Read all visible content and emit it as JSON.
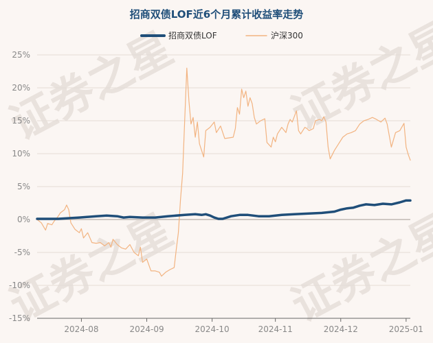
{
  "chart_data": {
    "type": "line",
    "title": "招商双债LOF近6个月累计收益率走势",
    "xlabel": "",
    "ylabel": "",
    "ylim": [
      -15,
      25
    ],
    "yticks": [
      "25%",
      "20%",
      "15%",
      "10%",
      "5%",
      "0%",
      "-5%",
      "-10%",
      "-15%"
    ],
    "ytick_values": [
      25,
      20,
      15,
      10,
      5,
      0,
      -5,
      -10,
      -15
    ],
    "xticks": [
      {
        "label": "2024-08",
        "t": 21
      },
      {
        "label": "2024-09",
        "t": 52
      },
      {
        "label": "2024-10",
        "t": 83
      },
      {
        "label": "2024-11",
        "t": 113
      },
      {
        "label": "2024-12",
        "t": 144
      },
      {
        "label": "2025-01",
        "t": 175
      }
    ],
    "x_range": [
      0,
      177
    ],
    "grid": true,
    "legend_position": "top",
    "series": [
      {
        "name": "招商双债LOF",
        "color": "#1f4e79",
        "width": 3.5,
        "points": [
          [
            0,
            0.1
          ],
          [
            10,
            0.1
          ],
          [
            20,
            0.3
          ],
          [
            28,
            0.5
          ],
          [
            33,
            0.6
          ],
          [
            38,
            0.5
          ],
          [
            41,
            0.3
          ],
          [
            44,
            0.4
          ],
          [
            50,
            0.3
          ],
          [
            56,
            0.3
          ],
          [
            62,
            0.5
          ],
          [
            70,
            0.7
          ],
          [
            75,
            0.8
          ],
          [
            78,
            0.7
          ],
          [
            80,
            0.8
          ],
          [
            82,
            0.6
          ],
          [
            84,
            0.3
          ],
          [
            86,
            0.1
          ],
          [
            88,
            0.1
          ],
          [
            92,
            0.5
          ],
          [
            96,
            0.7
          ],
          [
            100,
            0.7
          ],
          [
            105,
            0.5
          ],
          [
            110,
            0.5
          ],
          [
            116,
            0.7
          ],
          [
            122,
            0.8
          ],
          [
            128,
            0.9
          ],
          [
            135,
            1.0
          ],
          [
            141,
            1.2
          ],
          [
            144,
            1.5
          ],
          [
            147,
            1.7
          ],
          [
            150,
            1.8
          ],
          [
            153,
            2.1
          ],
          [
            156,
            2.3
          ],
          [
            160,
            2.2
          ],
          [
            164,
            2.4
          ],
          [
            168,
            2.3
          ],
          [
            172,
            2.6
          ],
          [
            175,
            2.9
          ],
          [
            177,
            2.9
          ]
        ]
      },
      {
        "name": "沪深300",
        "color": "#f2b380",
        "width": 1.2,
        "points": [
          [
            0,
            0.0
          ],
          [
            2,
            -0.5
          ],
          [
            4,
            -1.6
          ],
          [
            5,
            -0.6
          ],
          [
            7,
            -0.8
          ],
          [
            8,
            -0.3
          ],
          [
            10,
            0.5
          ],
          [
            11,
            1.0
          ],
          [
            13,
            1.5
          ],
          [
            14,
            2.2
          ],
          [
            15,
            1.5
          ],
          [
            16,
            -0.5
          ],
          [
            18,
            -1.5
          ],
          [
            20,
            -2.0
          ],
          [
            21,
            -1.4
          ],
          [
            22,
            -2.8
          ],
          [
            24,
            -2.0
          ],
          [
            26,
            -3.5
          ],
          [
            28,
            -3.6
          ],
          [
            30,
            -3.5
          ],
          [
            32,
            -4.0
          ],
          [
            34,
            -3.5
          ],
          [
            35,
            -4.2
          ],
          [
            36,
            -3.0
          ],
          [
            38,
            -3.8
          ],
          [
            40,
            -4.3
          ],
          [
            42,
            -4.5
          ],
          [
            44,
            -3.8
          ],
          [
            46,
            -5.0
          ],
          [
            48,
            -5.5
          ],
          [
            49,
            -4.2
          ],
          [
            50,
            -6.5
          ],
          [
            52,
            -6.0
          ],
          [
            54,
            -7.8
          ],
          [
            56,
            -7.8
          ],
          [
            58,
            -8.0
          ],
          [
            59,
            -8.6
          ],
          [
            61,
            -8.0
          ],
          [
            63,
            -7.6
          ],
          [
            65,
            -7.3
          ],
          [
            66,
            -4.5
          ],
          [
            67,
            -2.0
          ],
          [
            68,
            3.0
          ],
          [
            69,
            7.0
          ],
          [
            70,
            15.0
          ],
          [
            71,
            23.0
          ],
          [
            72,
            18.0
          ],
          [
            73,
            14.5
          ],
          [
            74,
            15.5
          ],
          [
            75,
            12.5
          ],
          [
            76,
            14.8
          ],
          [
            77,
            11.5
          ],
          [
            79,
            9.5
          ],
          [
            80,
            13.5
          ],
          [
            82,
            14.0
          ],
          [
            84,
            14.8
          ],
          [
            85,
            13.2
          ],
          [
            87,
            14.2
          ],
          [
            89,
            12.3
          ],
          [
            91,
            12.4
          ],
          [
            93,
            12.5
          ],
          [
            94,
            13.8
          ],
          [
            95,
            17.0
          ],
          [
            96,
            16.0
          ],
          [
            97,
            19.8
          ],
          [
            98,
            18.5
          ],
          [
            99,
            19.5
          ],
          [
            100,
            17.2
          ],
          [
            101,
            18.5
          ],
          [
            102,
            17.6
          ],
          [
            103,
            15.5
          ],
          [
            104,
            14.5
          ],
          [
            106,
            15.0
          ],
          [
            108,
            15.3
          ],
          [
            109,
            11.7
          ],
          [
            111,
            11.0
          ],
          [
            112,
            12.5
          ],
          [
            113,
            11.8
          ],
          [
            114,
            13.0
          ],
          [
            116,
            14.0
          ],
          [
            118,
            13.2
          ],
          [
            119,
            14.5
          ],
          [
            120,
            15.2
          ],
          [
            121,
            14.8
          ],
          [
            123,
            16.5
          ],
          [
            124,
            13.5
          ],
          [
            125,
            13.0
          ],
          [
            127,
            14.0
          ],
          [
            128,
            13.8
          ],
          [
            129,
            13.5
          ],
          [
            131,
            13.8
          ],
          [
            132,
            15.0
          ],
          [
            134,
            15.2
          ],
          [
            135,
            15.0
          ],
          [
            136,
            15.6
          ],
          [
            137,
            14.8
          ],
          [
            138,
            11.0
          ],
          [
            139,
            9.2
          ],
          [
            141,
            10.5
          ],
          [
            143,
            11.5
          ],
          [
            145,
            12.5
          ],
          [
            147,
            13.0
          ],
          [
            149,
            13.2
          ],
          [
            151,
            13.5
          ],
          [
            153,
            14.5
          ],
          [
            155,
            15.0
          ],
          [
            157,
            15.2
          ],
          [
            159,
            15.5
          ],
          [
            161,
            15.2
          ],
          [
            163,
            14.8
          ],
          [
            165,
            15.4
          ],
          [
            166,
            14.5
          ],
          [
            168,
            11.0
          ],
          [
            170,
            13.2
          ],
          [
            172,
            13.5
          ],
          [
            174,
            14.6
          ],
          [
            175,
            11.0
          ],
          [
            176,
            9.9
          ],
          [
            177,
            9.0
          ]
        ]
      }
    ]
  },
  "watermark_text": "证券之星"
}
